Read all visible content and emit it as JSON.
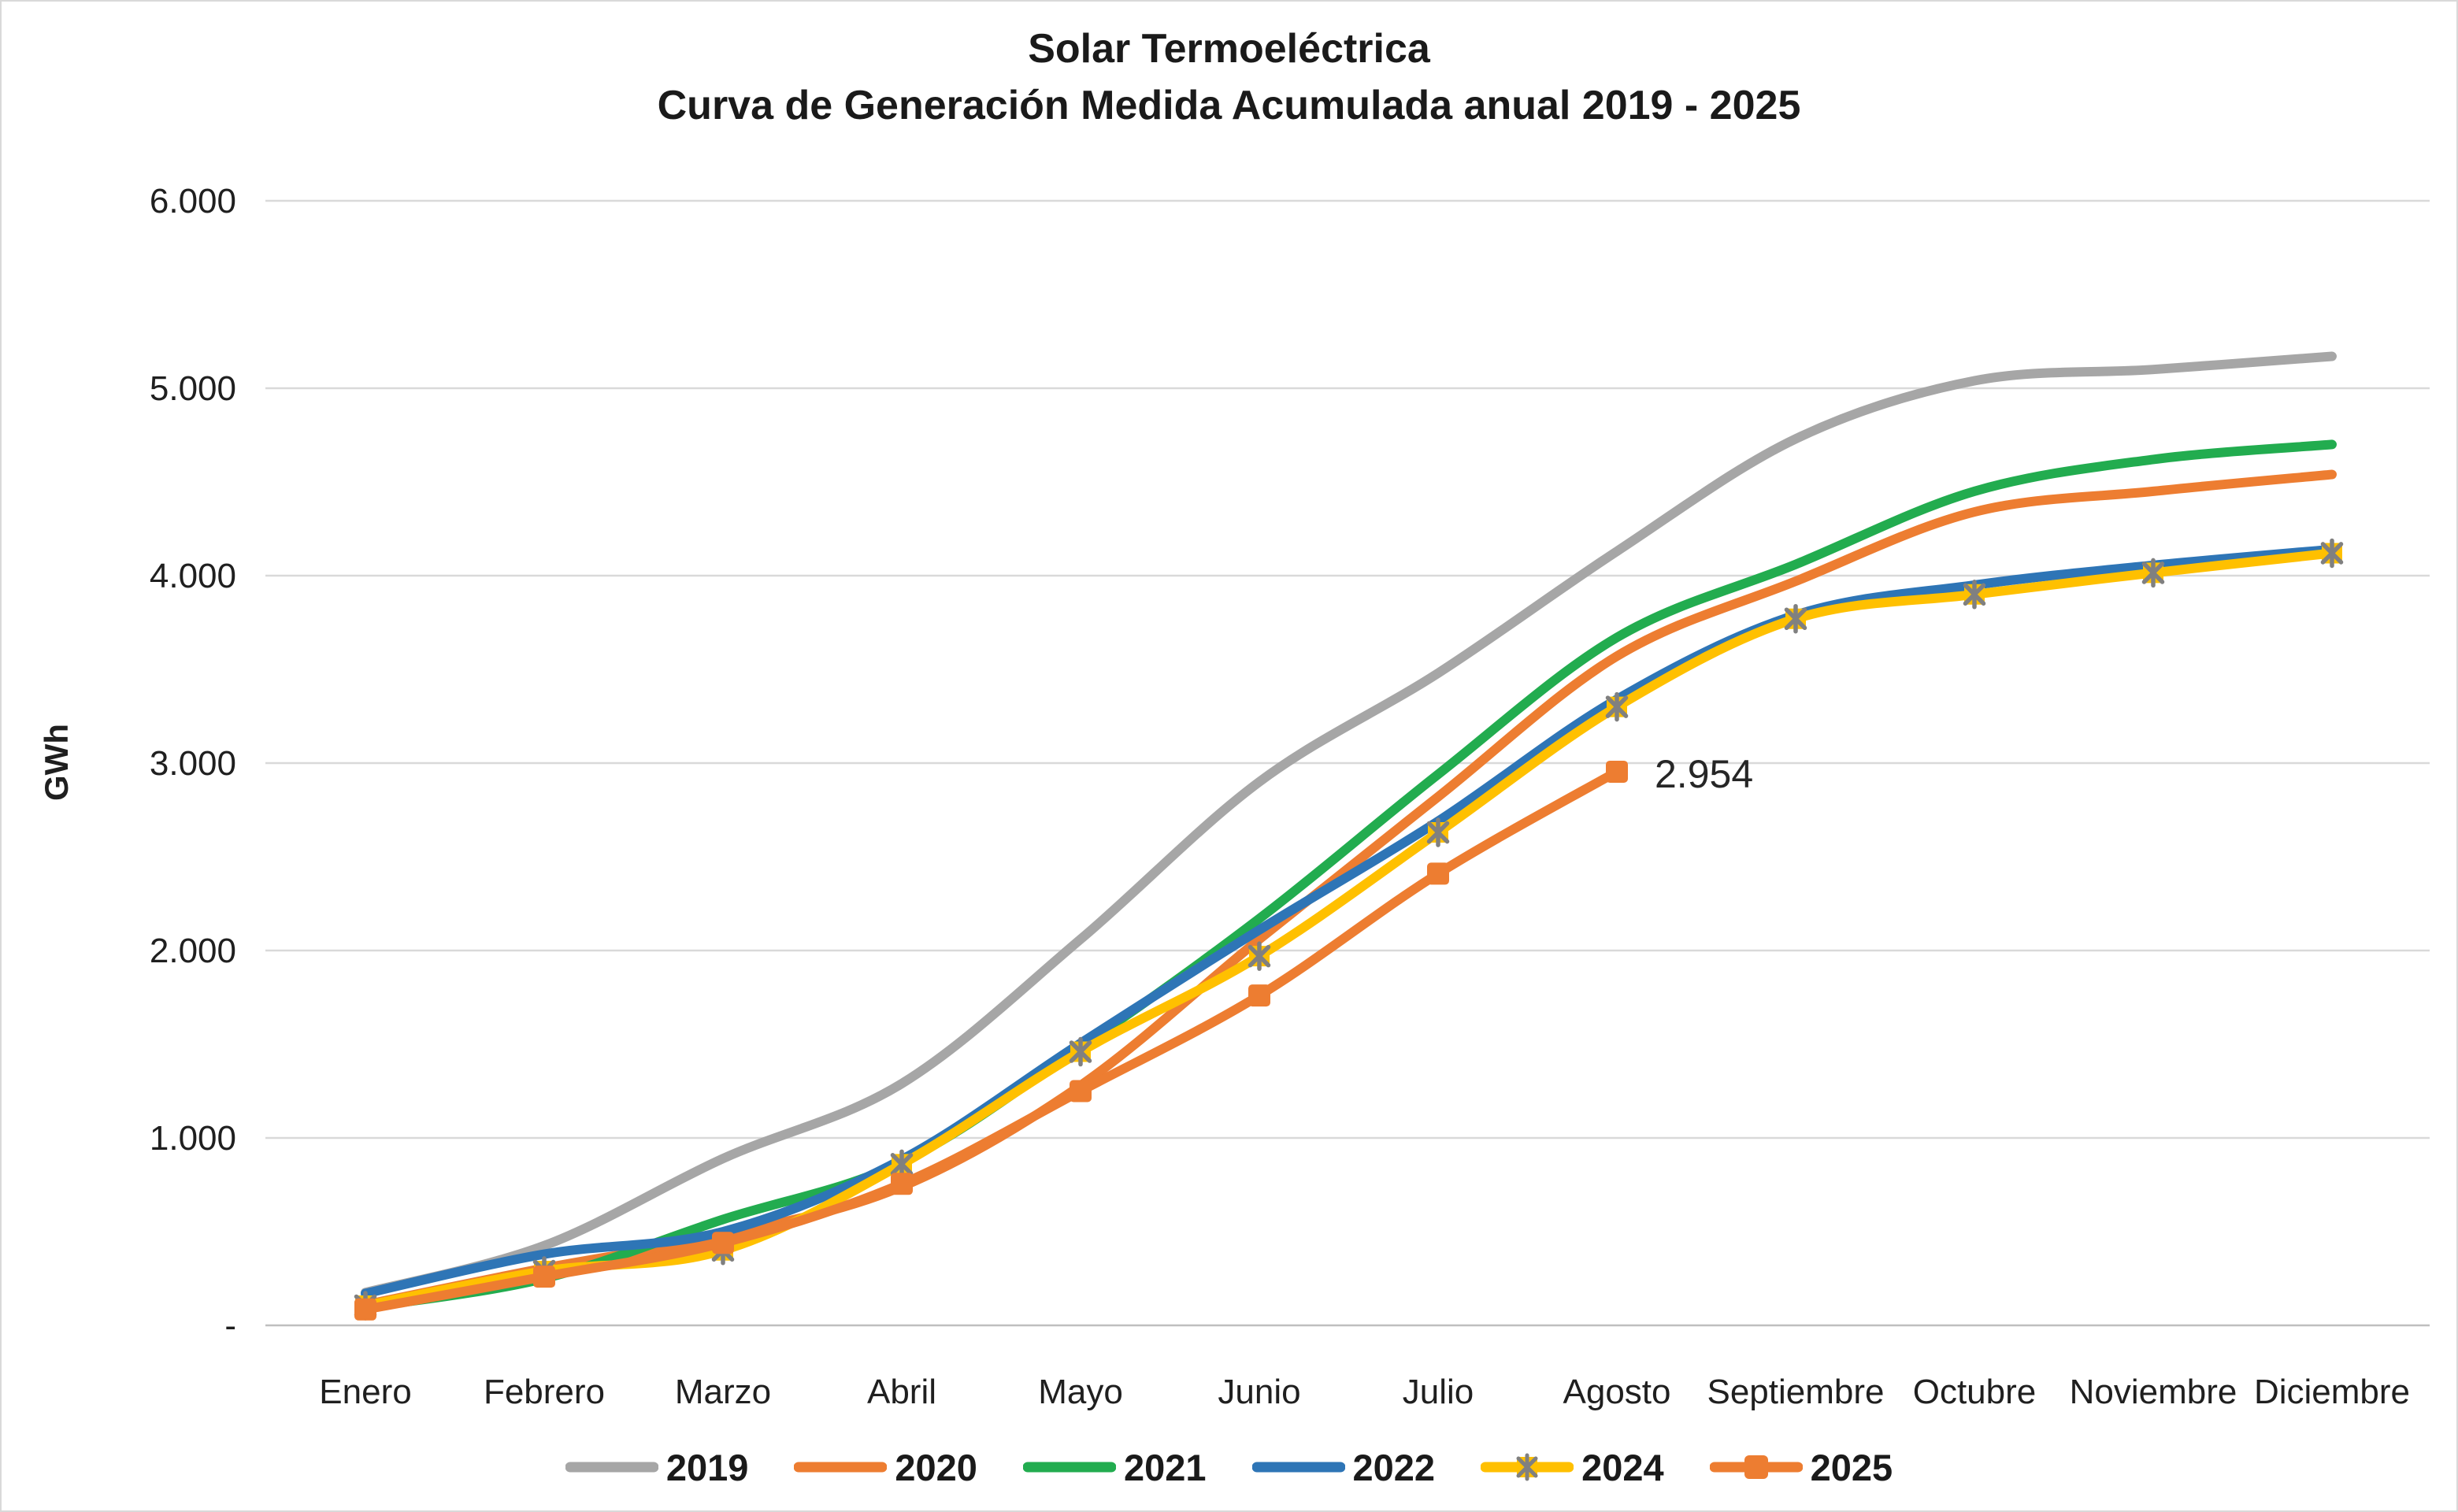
{
  "title": {
    "line1": "Solar Termoeléctrica",
    "line2": "Curva de Generación Medida Acumulada anual 2019 - 2025"
  },
  "chart_data": {
    "type": "line",
    "title": "Solar Termoeléctrica - Curva de Generación Medida Acumulada anual 2019 - 2025",
    "xlabel": "",
    "ylabel": "GWh",
    "ylim": [
      0,
      6000
    ],
    "grid": true,
    "legend_position": "bottom",
    "yticks": [
      {
        "value": 0,
        "label": "-"
      },
      {
        "value": 1000,
        "label": "1.000"
      },
      {
        "value": 2000,
        "label": "2.000"
      },
      {
        "value": 3000,
        "label": "3.000"
      },
      {
        "value": 4000,
        "label": "4.000"
      },
      {
        "value": 5000,
        "label": "5.000"
      },
      {
        "value": 6000,
        "label": "6.000"
      }
    ],
    "categories": [
      "Enero",
      "Febrero",
      "Marzo",
      "Abril",
      "Mayo",
      "Junio",
      "Julio",
      "Agosto",
      "Septiembre",
      "Octubre",
      "Noviembre",
      "Diciembre"
    ],
    "series": [
      {
        "name": "2019",
        "color": "#A6A6A6",
        "marker": "none",
        "values": [
          175,
          425,
          890,
          1290,
          2060,
          2900,
          3480,
          4130,
          4730,
          5040,
          5100,
          5170
        ]
      },
      {
        "name": "2020",
        "color": "#ED7D31",
        "marker": "none",
        "values": [
          110,
          305,
          480,
          740,
          1280,
          2060,
          2820,
          3570,
          3970,
          4340,
          4450,
          4540
        ]
      },
      {
        "name": "2021",
        "color": "#22AC4F",
        "marker": "none",
        "values": [
          95,
          250,
          565,
          870,
          1485,
          2170,
          2940,
          3670,
          4060,
          4450,
          4620,
          4700
        ]
      },
      {
        "name": "2022",
        "color": "#2E75B6",
        "marker": "none",
        "values": [
          170,
          380,
          500,
          885,
          1505,
          2110,
          2690,
          3340,
          3790,
          3950,
          4055,
          4140
        ]
      },
      {
        "name": "2024",
        "color": "#FFC000",
        "marker": "asterisk-square",
        "marker_stroke": "#808080",
        "values": [
          105,
          290,
          400,
          860,
          1460,
          1970,
          2630,
          3300,
          3770,
          3900,
          4015,
          4120
        ]
      },
      {
        "name": "2025",
        "color": "#ED7D31",
        "marker": "square",
        "values": [
          85,
          260,
          440,
          755,
          1250,
          1760,
          2410,
          2954,
          null,
          null,
          null,
          null
        ]
      }
    ],
    "annotation": {
      "text": "2.954",
      "value": 2954,
      "series": "2025",
      "category": "Agosto",
      "month_index": 7
    }
  },
  "colors": {
    "gridline": "#D9D9D9",
    "axis_line": "#BFBFBF",
    "text": "#1F1F1F",
    "annotation_text": "#262626"
  }
}
